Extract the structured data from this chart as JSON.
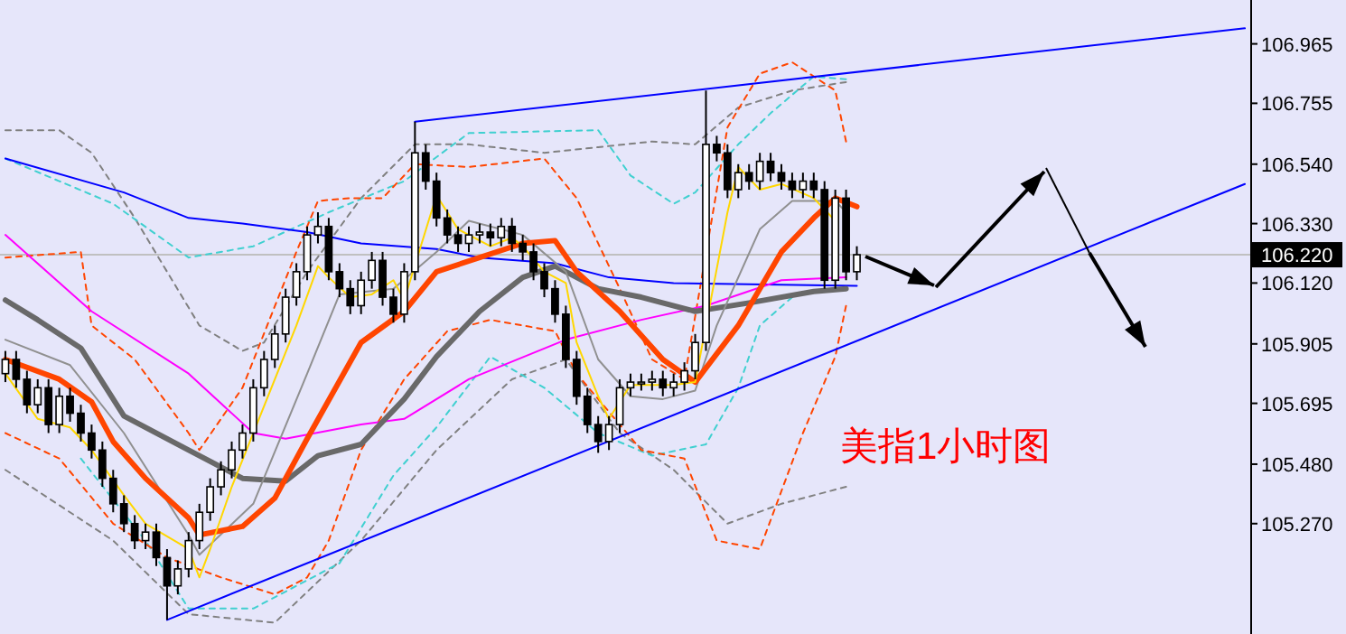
{
  "chart_data": {
    "type": "candlestick",
    "categories": [
      null,
      null,
      null,
      null,
      null,
      null,
      null,
      null,
      null,
      null,
      null,
      null,
      null,
      null,
      null,
      null,
      null,
      null,
      null,
      null,
      null,
      null,
      null,
      null,
      null,
      null,
      null,
      null,
      null,
      null,
      null,
      null,
      null,
      null,
      null,
      null,
      null,
      null,
      null,
      null,
      null,
      null,
      null,
      null,
      null,
      null,
      null,
      null,
      null,
      null,
      null,
      null,
      null,
      null,
      null,
      null,
      null,
      null,
      null,
      null,
      null,
      null,
      null,
      null,
      null,
      null,
      null,
      null,
      null,
      null,
      null,
      null,
      null,
      null,
      null,
      null,
      null,
      null,
      null,
      null,
      null,
      null,
      null,
      null,
      null,
      null,
      null,
      null,
      null,
      null,
      null,
      null,
      null,
      null,
      null,
      null,
      null,
      null,
      null,
      null,
      null,
      null,
      null,
      null,
      null,
      null,
      null,
      null,
      null,
      null,
      null,
      null,
      null,
      null,
      null,
      null
    ],
    "ohlc": [
      [
        105.8,
        105.88,
        105.77,
        105.85
      ],
      [
        105.85,
        105.88,
        105.75,
        105.78
      ],
      [
        105.78,
        105.81,
        105.66,
        105.69
      ],
      [
        105.69,
        105.78,
        105.66,
        105.75
      ],
      [
        105.75,
        105.78,
        105.59,
        105.62
      ],
      [
        105.62,
        105.75,
        105.59,
        105.72
      ],
      [
        105.72,
        105.75,
        105.63,
        105.66
      ],
      [
        105.66,
        105.69,
        105.56,
        105.59
      ],
      [
        105.59,
        105.62,
        105.5,
        105.53
      ],
      [
        105.53,
        105.56,
        105.4,
        105.43
      ],
      [
        105.43,
        105.46,
        105.31,
        105.34
      ],
      [
        105.34,
        105.37,
        105.24,
        105.27
      ],
      [
        105.27,
        105.3,
        105.18,
        105.21
      ],
      [
        105.21,
        105.27,
        105.18,
        105.24
      ],
      [
        105.24,
        105.27,
        105.12,
        105.15
      ],
      [
        105.15,
        105.18,
        104.93,
        105.05
      ],
      [
        105.05,
        105.14,
        105.02,
        105.11
      ],
      [
        105.11,
        105.24,
        105.08,
        105.21
      ],
      [
        105.21,
        105.34,
        105.18,
        105.31
      ],
      [
        105.31,
        105.43,
        105.28,
        105.4
      ],
      [
        105.4,
        105.49,
        105.37,
        105.46
      ],
      [
        105.46,
        105.56,
        105.43,
        105.53
      ],
      [
        105.53,
        105.62,
        105.5,
        105.59
      ],
      [
        105.59,
        105.78,
        105.56,
        105.75
      ],
      [
        105.75,
        105.88,
        105.72,
        105.85
      ],
      [
        105.85,
        105.97,
        105.82,
        105.94
      ],
      [
        105.94,
        106.1,
        105.91,
        106.07
      ],
      [
        106.07,
        106.19,
        106.04,
        106.16
      ],
      [
        106.16,
        106.32,
        106.13,
        106.29
      ],
      [
        106.29,
        106.37,
        106.26,
        106.32
      ],
      [
        106.32,
        106.35,
        106.13,
        106.16
      ],
      [
        106.16,
        106.19,
        106.07,
        106.1
      ],
      [
        106.1,
        106.13,
        106.01,
        106.04
      ],
      [
        106.04,
        106.16,
        106.01,
        106.13
      ],
      [
        106.13,
        106.23,
        106.1,
        106.2
      ],
      [
        106.2,
        106.23,
        106.04,
        106.07
      ],
      [
        106.07,
        106.1,
        105.98,
        106.01
      ],
      [
        106.01,
        106.19,
        105.98,
        106.16
      ],
      [
        106.16,
        106.69,
        106.13,
        106.58
      ],
      [
        106.58,
        106.61,
        106.45,
        106.48
      ],
      [
        106.48,
        106.51,
        106.32,
        106.35
      ],
      [
        106.35,
        106.38,
        106.26,
        106.29
      ],
      [
        106.29,
        106.32,
        106.23,
        106.26
      ],
      [
        106.26,
        106.32,
        106.23,
        106.29
      ],
      [
        106.29,
        106.33,
        106.26,
        106.3
      ],
      [
        106.3,
        106.33,
        106.25,
        106.28
      ],
      [
        106.28,
        106.35,
        106.25,
        106.32
      ],
      [
        106.32,
        106.35,
        106.23,
        106.26
      ],
      [
        106.26,
        106.29,
        106.2,
        106.23
      ],
      [
        106.23,
        106.26,
        106.13,
        106.16
      ],
      [
        106.16,
        106.19,
        106.07,
        106.1
      ],
      [
        106.1,
        106.13,
        105.98,
        106.01
      ],
      [
        106.01,
        106.04,
        105.82,
        105.85
      ],
      [
        105.85,
        105.88,
        105.69,
        105.72
      ],
      [
        105.72,
        105.75,
        105.59,
        105.62
      ],
      [
        105.62,
        105.65,
        105.52,
        105.56
      ],
      [
        105.56,
        105.65,
        105.53,
        105.62
      ],
      [
        105.62,
        105.78,
        105.59,
        105.75
      ],
      [
        105.75,
        105.8,
        105.72,
        105.77
      ],
      [
        105.77,
        105.8,
        105.74,
        105.77
      ],
      [
        105.77,
        105.81,
        105.74,
        105.78
      ],
      [
        105.78,
        105.81,
        105.72,
        105.75
      ],
      [
        105.75,
        105.8,
        105.72,
        105.77
      ],
      [
        105.77,
        105.84,
        105.74,
        105.81
      ],
      [
        105.81,
        105.94,
        105.78,
        105.91
      ],
      [
        105.91,
        106.8,
        105.88,
        106.61
      ],
      [
        106.61,
        106.64,
        106.55,
        106.58
      ],
      [
        106.58,
        106.61,
        106.42,
        106.45
      ],
      [
        106.45,
        106.54,
        106.42,
        106.51
      ],
      [
        106.51,
        106.54,
        106.45,
        106.48
      ],
      [
        106.48,
        106.58,
        106.45,
        106.55
      ],
      [
        106.55,
        106.58,
        106.48,
        106.51
      ],
      [
        106.51,
        106.54,
        106.45,
        106.48
      ],
      [
        106.48,
        106.51,
        106.42,
        106.45
      ],
      [
        106.45,
        106.51,
        106.42,
        106.48
      ],
      [
        106.48,
        106.51,
        106.42,
        106.45
      ],
      [
        106.45,
        106.48,
        106.1,
        106.13
      ],
      [
        106.13,
        106.45,
        106.1,
        106.42
      ],
      [
        106.42,
        106.45,
        106.13,
        106.16
      ],
      [
        106.16,
        106.25,
        106.13,
        106.22
      ],
      null,
      null,
      null,
      null,
      null,
      null,
      null,
      null,
      null,
      null,
      null,
      null,
      null,
      null,
      null,
      null,
      null,
      null,
      null,
      null,
      null,
      null,
      null,
      null,
      null,
      null,
      null,
      null,
      null,
      null,
      null,
      null,
      null,
      null,
      null,
      null
    ],
    "ylim": [
      104.88,
      107.12
    ],
    "yticks": [
      {
        "value": 106.965,
        "label": "106.965"
      },
      {
        "value": 106.755,
        "label": "106.755"
      },
      {
        "value": 106.54,
        "label": "106.540"
      },
      {
        "value": 106.33,
        "label": "106.330"
      },
      {
        "value": 106.12,
        "label": "106.120"
      },
      {
        "value": 105.905,
        "label": "105.905"
      },
      {
        "value": 105.695,
        "label": "105.695"
      },
      {
        "value": 105.48,
        "label": "105.480"
      },
      {
        "value": 105.27,
        "label": "105.270"
      }
    ],
    "tick_labels": "y",
    "ref_lines": [
      {
        "axis": "y",
        "value": 106.22,
        "label": "106.220",
        "color": "#c0c0c0"
      }
    ],
    "series": [
      {
        "type": "line",
        "color": "#808080",
        "line_style": "dashed",
        "values": [
          106.66,
          null,
          null,
          null,
          null,
          106.66,
          null,
          null,
          106.58,
          null,
          null,
          null,
          106.35,
          null,
          null,
          106.16,
          null,
          null,
          105.97,
          null,
          null,
          null,
          105.88,
          null,
          105.91,
          null,
          null,
          null,
          106.16,
          null,
          null,
          null,
          null,
          106.42,
          null,
          null,
          null,
          null,
          106.61,
          null,
          null,
          null,
          null,
          106.61,
          null,
          null,
          null,
          null,
          null,
          null,
          106.58,
          null,
          null,
          null,
          null,
          106.6,
          null,
          null,
          null,
          null,
          106.62,
          null,
          null,
          null,
          106.61,
          null,
          null,
          null,
          106.74,
          null,
          null,
          null,
          null,
          106.8,
          null,
          null,
          null,
          null,
          106.83,
          null,
          null,
          null,
          null,
          null,
          null,
          null,
          null,
          null,
          null,
          null,
          null,
          null,
          null,
          null,
          null,
          null,
          null,
          null,
          null,
          null,
          null,
          null,
          null,
          null,
          null,
          null,
          null,
          null,
          null,
          null,
          null,
          null,
          null,
          null,
          null,
          null
        ]
      },
      {
        "type": "line",
        "color": "#808080",
        "line_style": "dashed",
        "values": [
          105.46,
          null,
          null,
          null,
          null,
          null,
          null,
          null,
          null,
          null,
          105.21,
          null,
          null,
          null,
          null,
          null,
          null,
          104.95,
          null,
          null,
          null,
          null,
          null,
          null,
          null,
          104.92,
          null,
          null,
          null,
          null,
          null,
          null,
          null,
          105.21,
          null,
          null,
          null,
          null,
          null,
          null,
          105.53,
          null,
          null,
          null,
          null,
          null,
          null,
          105.78,
          null,
          null,
          null,
          null,
          105.85,
          null,
          null,
          null,
          null,
          105.59,
          null,
          null,
          null,
          null,
          105.46,
          null,
          null,
          null,
          null,
          105.27,
          null,
          null,
          null,
          null,
          105.34,
          null,
          null,
          null,
          null,
          null,
          105.4,
          null,
          null,
          null,
          null,
          null,
          null,
          null,
          null,
          null,
          null,
          null,
          null,
          null,
          null,
          null,
          null,
          null,
          null,
          null,
          null,
          null,
          null,
          null,
          null,
          null,
          null,
          null,
          null,
          null,
          null,
          null,
          null,
          null,
          null,
          null,
          null,
          null
        ]
      },
      {
        "type": "line",
        "color": "#40d0d0",
        "line_style": "dashed",
        "values": [
          106.56,
          null,
          null,
          null,
          null,
          106.48,
          null,
          null,
          null,
          null,
          106.4,
          null,
          null,
          null,
          null,
          null,
          null,
          106.21,
          null,
          null,
          null,
          null,
          null,
          106.25,
          null,
          null,
          null,
          null,
          null,
          null,
          106.37,
          null,
          null,
          null,
          null,
          null,
          null,
          106.48,
          null,
          null,
          null,
          null,
          null,
          106.65,
          null,
          null,
          null,
          null,
          null,
          null,
          null,
          null,
          null,
          null,
          null,
          106.66,
          null,
          null,
          106.5,
          null,
          null,
          null,
          106.4,
          null,
          106.44,
          null,
          null,
          null,
          106.61,
          null,
          null,
          106.72,
          null,
          null,
          null,
          106.85,
          null,
          null,
          106.84,
          null,
          null,
          null,
          null,
          null,
          null,
          null,
          null,
          null,
          null,
          null,
          null,
          null,
          null,
          null,
          null,
          null,
          null,
          null,
          null,
          null,
          null,
          null,
          null,
          null,
          null,
          null,
          null,
          null,
          null,
          null,
          null,
          null,
          null,
          null,
          null,
          null
        ]
      },
      {
        "type": "line",
        "color": "#40d0d0",
        "line_style": "dashed",
        "values": [
          null,
          null,
          null,
          null,
          null,
          null,
          null,
          105.5,
          null,
          null,
          null,
          null,
          null,
          105.21,
          null,
          null,
          null,
          104.97,
          null,
          null,
          null,
          null,
          null,
          104.97,
          null,
          null,
          null,
          null,
          null,
          null,
          null,
          105.13,
          null,
          null,
          null,
          null,
          105.44,
          null,
          null,
          null,
          105.61,
          null,
          null,
          null,
          null,
          105.86,
          null,
          null,
          null,
          null,
          105.75,
          null,
          null,
          null,
          null,
          105.59,
          null,
          null,
          null,
          null,
          105.51,
          null,
          null,
          null,
          null,
          105.55,
          null,
          null,
          105.75,
          null,
          105.97,
          null,
          null,
          106.07,
          null,
          null,
          null,
          null,
          null,
          null,
          null,
          null,
          null,
          null,
          null,
          null,
          null,
          null,
          null,
          null,
          null,
          null,
          null,
          null,
          null,
          null,
          null,
          null,
          null,
          null,
          null,
          null,
          null,
          null,
          null,
          null,
          null,
          null,
          null,
          null,
          null,
          null,
          null,
          null,
          null,
          null
        ]
      },
      {
        "type": "line",
        "color": "#ff4500",
        "line_style": "dashed",
        "values": [
          106.21,
          null,
          null,
          null,
          null,
          null,
          null,
          106.23,
          105.97,
          null,
          null,
          null,
          105.85,
          null,
          null,
          null,
          null,
          105.59,
          105.53,
          null,
          null,
          null,
          105.75,
          null,
          null,
          null,
          null,
          106.23,
          null,
          106.41,
          null,
          null,
          106.42,
          null,
          null,
          106.42,
          null,
          null,
          106.54,
          null,
          null,
          null,
          null,
          106.53,
          null,
          null,
          null,
          null,
          null,
          null,
          106.56,
          null,
          null,
          106.42,
          null,
          null,
          null,
          106.1,
          null,
          null,
          105.85,
          null,
          null,
          105.78,
          null,
          null,
          null,
          106.67,
          null,
          null,
          106.86,
          null,
          null,
          106.9,
          null,
          null,
          null,
          106.8,
          106.62,
          null,
          null,
          null,
          null,
          null,
          null,
          null,
          null,
          null,
          null,
          null,
          null,
          null,
          null,
          null,
          null,
          null,
          null,
          null,
          null,
          null,
          null,
          null,
          null,
          null,
          null,
          null,
          null,
          null,
          null,
          null,
          null,
          null,
          null,
          null,
          null,
          null
        ]
      },
      {
        "type": "line",
        "color": "#ff4500",
        "line_style": "dashed",
        "values": [
          105.59,
          null,
          null,
          null,
          null,
          105.5,
          null,
          null,
          null,
          null,
          105.27,
          null,
          null,
          null,
          null,
          105.15,
          null,
          null,
          null,
          null,
          105.08,
          null,
          null,
          null,
          null,
          105.02,
          null,
          null,
          105.08,
          null,
          105.21,
          null,
          null,
          105.53,
          null,
          null,
          null,
          105.78,
          null,
          null,
          null,
          105.95,
          null,
          null,
          null,
          105.99,
          null,
          null,
          null,
          null,
          null,
          105.95,
          null,
          105.8,
          null,
          null,
          null,
          null,
          null,
          105.53,
          null,
          null,
          null,
          105.5,
          null,
          null,
          105.21,
          null,
          null,
          null,
          105.18,
          null,
          null,
          null,
          105.59,
          null,
          null,
          105.86,
          106.04,
          null,
          null,
          null,
          null,
          null,
          null,
          null,
          null,
          null,
          null,
          null,
          null,
          null,
          null,
          null,
          null,
          null,
          null,
          null,
          null,
          null,
          null,
          null,
          null,
          null,
          null,
          null,
          null,
          null,
          null,
          null,
          null,
          null,
          null,
          null,
          null,
          null
        ]
      },
      {
        "type": "line",
        "color": "#0000ff",
        "values": [
          106.56,
          null,
          null,
          null,
          null,
          null,
          null,
          null,
          null,
          null,
          null,
          106.44,
          null,
          null,
          null,
          null,
          null,
          106.35,
          null,
          null,
          null,
          null,
          106.33,
          null,
          null,
          null,
          null,
          null,
          106.3,
          null,
          null,
          null,
          null,
          106.26,
          null,
          null,
          null,
          null,
          null,
          null,
          106.24,
          null,
          null,
          null,
          106.21,
          null,
          null,
          null,
          null,
          null,
          null,
          106.19,
          null,
          null,
          null,
          null,
          106.14,
          null,
          null,
          null,
          null,
          null,
          106.12,
          null,
          null,
          null,
          null,
          null,
          null,
          null,
          null,
          null,
          null,
          null,
          null,
          null,
          null,
          null,
          null,
          106.11,
          null,
          null,
          null,
          null,
          null,
          null,
          null,
          null,
          null,
          null,
          null,
          null,
          null,
          null,
          null,
          null,
          null,
          null,
          null,
          null,
          null,
          null,
          null,
          null,
          null,
          null,
          null,
          null,
          null,
          null,
          null,
          null,
          null,
          null,
          null,
          null
        ]
      },
      {
        "type": "line",
        "color": "#ff00ff",
        "values": [
          106.29,
          null,
          null,
          null,
          null,
          null,
          null,
          null,
          106.02,
          null,
          null,
          null,
          null,
          null,
          null,
          null,
          null,
          105.8,
          null,
          null,
          null,
          null,
          null,
          105.59,
          null,
          null,
          105.57,
          null,
          null,
          null,
          null,
          null,
          null,
          105.62,
          null,
          null,
          null,
          105.64,
          null,
          null,
          null,
          null,
          null,
          105.78,
          null,
          null,
          null,
          null,
          null,
          null,
          null,
          null,
          105.92,
          null,
          null,
          null,
          null,
          null,
          null,
          105.99,
          null,
          null,
          null,
          null,
          null,
          106.04,
          null,
          null,
          null,
          null,
          null,
          null,
          106.13,
          null,
          null,
          null,
          null,
          null,
          106.14,
          null,
          null,
          null,
          null,
          null,
          null,
          null,
          null,
          null,
          null,
          null,
          null,
          null,
          null,
          null,
          null,
          null,
          null,
          null,
          null,
          null,
          null,
          null,
          null,
          null,
          null,
          null,
          null,
          null,
          null,
          null,
          null,
          null,
          null,
          null,
          null,
          null
        ]
      },
      {
        "type": "line",
        "color": "#696969",
        "values": [
          106.06,
          null,
          null,
          105.99,
          null,
          null,
          null,
          105.89,
          null,
          null,
          null,
          105.65,
          null,
          null,
          null,
          null,
          null,
          105.53,
          null,
          null,
          null,
          null,
          105.43,
          null,
          null,
          null,
          105.42,
          null,
          null,
          105.51,
          null,
          null,
          null,
          105.55,
          null,
          null,
          null,
          105.71,
          null,
          null,
          105.86,
          null,
          null,
          null,
          106.02,
          null,
          null,
          null,
          106.14,
          null,
          null,
          106.18,
          null,
          null,
          null,
          106.1,
          null,
          null,
          null,
          106.07,
          null,
          null,
          null,
          null,
          106.02,
          null,
          null,
          null,
          null,
          106.05,
          null,
          null,
          null,
          null,
          null,
          106.09,
          null,
          null,
          106.1,
          null,
          null,
          null,
          null,
          null,
          null,
          null,
          null,
          null,
          null,
          null,
          null,
          null,
          null,
          null,
          null,
          null,
          null,
          null,
          null,
          null,
          null,
          null,
          null,
          null,
          null,
          null,
          null,
          null,
          null,
          null,
          null,
          null,
          null,
          null,
          null,
          null
        ]
      },
      {
        "type": "line",
        "color": "#909090",
        "values": [
          105.92,
          null,
          null,
          null,
          null,
          null,
          105.83,
          null,
          null,
          null,
          null,
          105.59,
          null,
          null,
          null,
          null,
          null,
          105.23,
          105.16,
          null,
          null,
          null,
          null,
          105.34,
          null,
          null,
          null,
          null,
          105.8,
          null,
          null,
          106.08,
          null,
          null,
          null,
          null,
          106.1,
          null,
          null,
          null,
          106.23,
          null,
          null,
          106.34,
          null,
          null,
          null,
          null,
          106.29,
          null,
          null,
          null,
          106.16,
          null,
          null,
          105.85,
          null,
          null,
          105.72,
          null,
          null,
          105.71,
          null,
          null,
          105.74,
          null,
          105.97,
          null,
          null,
          null,
          106.31,
          null,
          null,
          106.41,
          null,
          null,
          null,
          106.41,
          106.37,
          null,
          null,
          null,
          null,
          null,
          null,
          null,
          null,
          null,
          null,
          null,
          null,
          null,
          null,
          null,
          null,
          null,
          null,
          null,
          null,
          null,
          null,
          null,
          null,
          null,
          null,
          null,
          null,
          null,
          null,
          null,
          null,
          null,
          null,
          null,
          null,
          null
        ]
      },
      {
        "type": "line",
        "color": "#ff4500",
        "values": [
          105.85,
          null,
          null,
          null,
          null,
          105.78,
          null,
          null,
          105.7,
          null,
          105.56,
          null,
          null,
          105.43,
          null,
          null,
          null,
          105.29,
          105.23,
          null,
          null,
          null,
          105.26,
          null,
          null,
          105.36,
          null,
          null,
          105.57,
          null,
          null,
          null,
          null,
          105.91,
          null,
          null,
          null,
          106.02,
          null,
          null,
          106.16,
          null,
          null,
          null,
          106.21,
          null,
          null,
          null,
          106.26,
          null,
          null,
          106.27,
          null,
          106.16,
          null,
          null,
          null,
          106.02,
          null,
          null,
          null,
          105.85,
          null,
          null,
          105.77,
          null,
          null,
          null,
          105.97,
          null,
          null,
          null,
          106.23,
          null,
          null,
          106.35,
          null,
          106.42,
          null,
          106.39,
          null,
          null,
          null,
          null,
          null,
          null,
          null,
          null,
          null,
          null,
          null,
          null,
          null,
          null,
          null,
          null,
          null,
          null,
          null,
          null,
          null,
          null,
          null,
          null,
          null,
          null,
          null,
          null,
          null,
          null,
          null,
          null,
          null,
          null,
          null,
          null
        ]
      },
      {
        "type": "line",
        "color": "#ffd700",
        "values": [
          105.8,
          null,
          null,
          105.64,
          null,
          null,
          105.61,
          null,
          105.53,
          null,
          null,
          105.37,
          null,
          105.27,
          null,
          null,
          null,
          105.18,
          105.08,
          105.18,
          null,
          105.4,
          null,
          null,
          null,
          null,
          null,
          105.97,
          null,
          106.18,
          106.14,
          null,
          106.07,
          null,
          106.08,
          null,
          106.13,
          106.06,
          null,
          null,
          106.43,
          null,
          106.31,
          null,
          null,
          106.25,
          null,
          106.28,
          106.25,
          null,
          106.16,
          null,
          106.12,
          105.91,
          null,
          105.72,
          105.64,
          null,
          105.76,
          null,
          105.76,
          null,
          105.76,
          null,
          105.77,
          null,
          null,
          106.37,
          106.53,
          null,
          106.45,
          null,
          106.47,
          null,
          null,
          106.42,
          null,
          106.34,
          null,
          null,
          null,
          null,
          null,
          null,
          null,
          null,
          null,
          null,
          null,
          null,
          null,
          null,
          null,
          null,
          null,
          null,
          null,
          null,
          null,
          null,
          null,
          null,
          null,
          null,
          null,
          null,
          null,
          null,
          null,
          null,
          null,
          null,
          null,
          null,
          null,
          null
        ]
      },
      {
        "type": "line",
        "color": "#0000ff",
        "values": [
          null,
          null,
          null,
          null,
          null,
          null,
          null,
          null,
          null,
          null,
          null,
          null,
          null,
          null,
          null,
          null,
          null,
          null,
          null,
          null,
          null,
          null,
          null,
          null,
          null,
          null,
          null,
          null,
          null,
          null,
          null,
          null,
          null,
          null,
          null,
          null,
          null,
          null,
          106.69,
          null,
          null,
          null,
          null,
          null,
          null,
          null,
          null,
          null,
          null,
          null,
          null,
          null,
          null,
          null,
          null,
          null,
          null,
          null,
          null,
          null,
          null,
          null,
          null,
          null,
          null,
          null,
          null,
          null,
          null,
          null,
          null,
          null,
          null,
          null,
          null,
          null,
          null,
          null,
          null,
          null,
          null,
          null,
          null,
          null,
          null,
          null,
          null,
          null,
          null,
          null,
          null,
          null,
          null,
          null,
          null,
          null,
          null,
          null,
          null,
          null,
          null,
          null,
          null,
          null,
          null,
          null,
          null,
          null,
          null,
          null,
          null,
          null,
          null,
          null,
          null,
          107.02
        ]
      },
      {
        "type": "line",
        "color": "#0000ff",
        "values": [
          null,
          null,
          null,
          null,
          null,
          null,
          null,
          null,
          null,
          null,
          null,
          null,
          null,
          null,
          null,
          104.93,
          null,
          null,
          null,
          null,
          null,
          null,
          null,
          null,
          null,
          null,
          null,
          null,
          null,
          null,
          null,
          null,
          null,
          null,
          null,
          null,
          null,
          null,
          null,
          null,
          null,
          null,
          null,
          null,
          null,
          null,
          null,
          null,
          null,
          null,
          null,
          null,
          null,
          null,
          null,
          null,
          null,
          null,
          null,
          null,
          null,
          null,
          null,
          null,
          null,
          null,
          null,
          null,
          null,
          null,
          null,
          null,
          null,
          null,
          null,
          null,
          null,
          null,
          null,
          null,
          null,
          null,
          null,
          null,
          null,
          null,
          null,
          null,
          null,
          null,
          null,
          null,
          null,
          null,
          null,
          null,
          null,
          null,
          null,
          null,
          null,
          null,
          null,
          null,
          null,
          null,
          null,
          null,
          null,
          null,
          null,
          null,
          null,
          null,
          null,
          106.47
        ]
      }
    ],
    "annotations": [
      "美指1小时图"
    ]
  }
}
